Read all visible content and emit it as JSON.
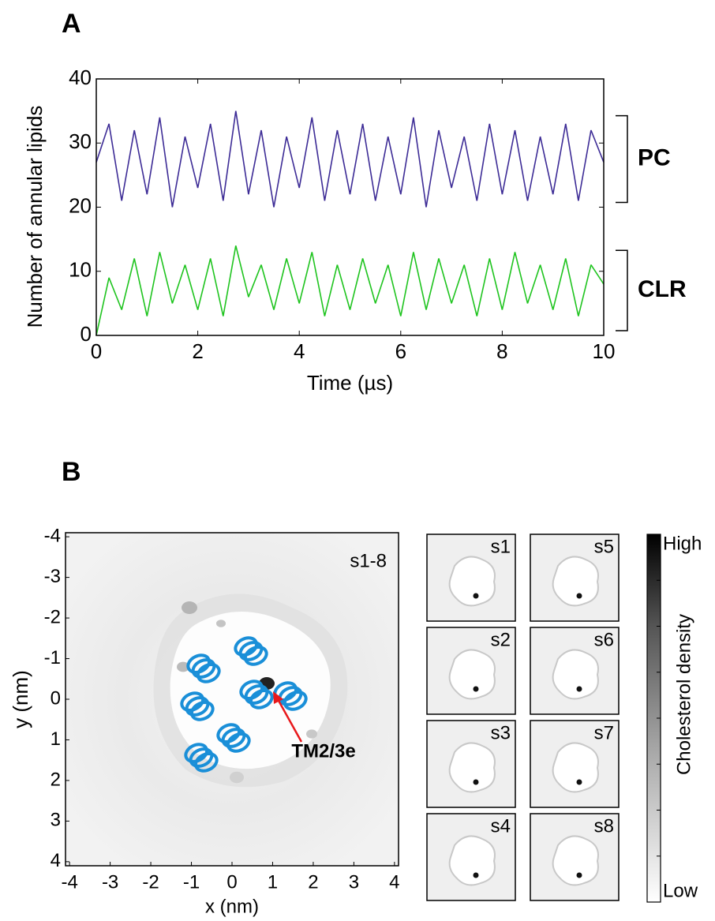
{
  "chart_data": [
    {
      "type": "line",
      "panel_label": "A",
      "x_label": "Time (µs)",
      "y_label": "Number of annular lipids",
      "x": [
        0,
        0.25,
        0.5,
        0.75,
        1,
        1.25,
        1.5,
        1.75,
        2,
        2.25,
        2.5,
        2.75,
        3,
        3.25,
        3.5,
        3.75,
        4,
        4.25,
        4.5,
        4.75,
        5,
        5.25,
        5.5,
        5.75,
        6,
        6.25,
        6.5,
        6.75,
        7,
        7.25,
        7.5,
        7.75,
        8,
        8.25,
        8.5,
        8.75,
        9,
        9.25,
        9.5,
        9.75,
        10
      ],
      "series": [
        {
          "name": "PC",
          "color": "#3d2c96",
          "label_color": "#3b1463",
          "values": [
            27,
            33,
            21,
            32,
            22,
            34,
            20,
            31,
            23,
            33,
            21,
            35,
            22,
            32,
            20,
            31,
            23,
            34,
            21,
            32,
            22,
            33,
            21,
            31,
            22,
            34,
            20,
            32,
            23,
            31,
            21,
            33,
            22,
            32,
            21,
            31,
            22,
            33,
            21,
            32,
            27
          ]
        },
        {
          "name": "CLR",
          "color": "#1fc41f",
          "label_color": "#2e9e1a",
          "values": [
            0,
            9,
            4,
            12,
            3,
            13,
            5,
            11,
            4,
            12,
            3,
            14,
            6,
            11,
            4,
            12,
            5,
            13,
            3,
            11,
            4,
            12,
            5,
            11,
            3,
            13,
            4,
            12,
            5,
            11,
            3,
            12,
            4,
            13,
            5,
            11,
            4,
            12,
            3,
            11,
            8
          ]
        }
      ],
      "xlim": [
        0,
        10
      ],
      "ylim": [
        0,
        40
      ],
      "xticks": [
        0,
        2,
        4,
        6,
        8,
        10
      ],
      "yticks": [
        0,
        10,
        20,
        30,
        40
      ]
    },
    {
      "type": "image",
      "panel_label": "B",
      "x_label": "x (nm)",
      "y_label": "y (nm)",
      "xlim": [
        -4.1,
        4.1
      ],
      "ylim": [
        -4.1,
        4.1
      ],
      "y_inverted": true,
      "xticks": [
        -4,
        -3,
        -2,
        -1,
        0,
        1,
        2,
        3,
        4
      ],
      "yticks": [
        -4,
        -3,
        -2,
        -1,
        0,
        1,
        2,
        3,
        4
      ],
      "annotations": [
        {
          "text": "s1-8",
          "color": "#000000"
        },
        {
          "text": "TM2/3e",
          "color": "#e8191c"
        }
      ],
      "panels": [
        "s1",
        "s2",
        "s3",
        "s4",
        "s5",
        "s6",
        "s7",
        "s8"
      ],
      "colorbar": {
        "label": "Cholesterol density",
        "high": "High",
        "low": "Low"
      }
    }
  ]
}
